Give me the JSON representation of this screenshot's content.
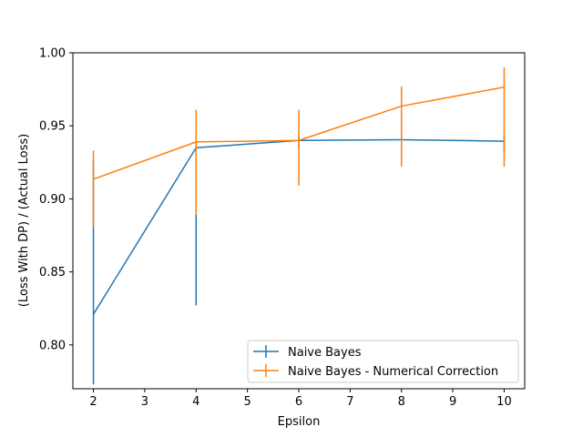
{
  "chart_data": {
    "type": "line",
    "title": "",
    "xlabel": "Epsilon",
    "ylabel": "(Loss With DP) / (Actual Loss)",
    "xlim": [
      1.6,
      10.4
    ],
    "ylim": [
      0.77,
      1.0
    ],
    "xticks": [
      2,
      3,
      4,
      5,
      6,
      7,
      8,
      9,
      10
    ],
    "yticks": [
      0.8,
      0.85,
      0.9,
      0.95,
      1.0
    ],
    "xtick_labels": [
      "2",
      "3",
      "4",
      "5",
      "6",
      "7",
      "8",
      "9",
      "10"
    ],
    "ytick_labels": [
      "0.80",
      "0.85",
      "0.90",
      "0.95",
      "1.00"
    ],
    "grid": false,
    "legend_position": "lower-right",
    "series": [
      {
        "name": "Naive Bayes",
        "color": "#1f77b4",
        "x": [
          2,
          4,
          6,
          8,
          10
        ],
        "y": [
          0.821,
          0.935,
          0.94,
          0.9405,
          0.9395
        ],
        "yerr_low": [
          0.773,
          0.827,
          0.936,
          0.931,
          0.931
        ],
        "yerr_high": [
          0.926,
          0.944,
          0.944,
          0.943,
          0.944
        ]
      },
      {
        "name": "Naive Bayes - Numerical Correction",
        "color": "#ff7f0e",
        "x": [
          2,
          4,
          6,
          8,
          10
        ],
        "y": [
          0.9135,
          0.939,
          0.94,
          0.9635,
          0.9765
        ],
        "yerr_low": [
          0.881,
          0.889,
          0.909,
          0.922,
          0.922
        ],
        "yerr_high": [
          0.933,
          0.961,
          0.961,
          0.977,
          0.99
        ]
      }
    ]
  }
}
